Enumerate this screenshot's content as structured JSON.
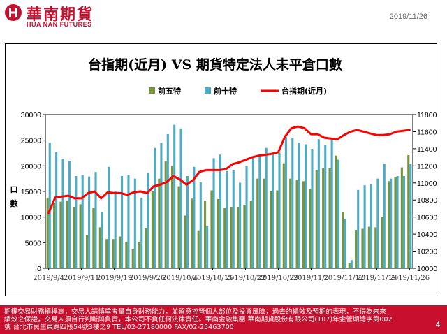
{
  "header": {
    "company_cn": "華南期貨",
    "company_en": "HUA NAN FUTURES",
    "date": "2019/11/26"
  },
  "chart_data": {
    "type": "bar+line",
    "title": "台指期(近月)  VS 期貨特定法人未平倉口數",
    "ylabel": "口數",
    "y_left": {
      "range": [
        0,
        30000
      ],
      "ticks": [
        0,
        5000,
        10000,
        15000,
        20000,
        25000,
        30000
      ]
    },
    "y_right": {
      "range": [
        10000,
        11800
      ],
      "ticks": [
        10000,
        10200,
        10400,
        10600,
        10800,
        11000,
        11200,
        11400,
        11600,
        11800
      ]
    },
    "x_tick_labels": [
      "2019/9/4",
      "2019/9/11",
      "2019/9/19",
      "2019/9/26",
      "2019/10/4",
      "2019/10/15",
      "2019/10/22",
      "2019/10/29",
      "2019/11/5",
      "2019/11/12",
      "2019/11/19",
      "2019/11/26"
    ],
    "x_tick_indices": [
      0,
      5,
      10,
      15,
      20,
      25,
      30,
      35,
      40,
      45,
      50,
      55
    ],
    "legend_position": "top-center",
    "grid": false,
    "series": [
      {
        "name": "前五特",
        "kind": "bar",
        "color": "#77933c",
        "values": [
          13800,
          12800,
          13000,
          13200,
          12000,
          12500,
          6500,
          11800,
          8000,
          5700,
          5700,
          6200,
          5200,
          3700,
          5200,
          7800,
          15000,
          17500,
          21000,
          20000,
          16000,
          10300,
          13600,
          7400,
          13200,
          15200,
          13500,
          11800,
          12000,
          12000,
          12400,
          13200,
          17500,
          17500,
          15000,
          15200,
          20500,
          17500,
          17200,
          17000,
          15500,
          19200,
          19500,
          19500,
          22000,
          10900,
          1000,
          7500,
          7700,
          8100,
          8000,
          10000,
          17000,
          17800,
          19700,
          22100
        ]
      },
      {
        "name": "前十特",
        "kind": "bar",
        "color": "#4bacc6",
        "values": [
          24500,
          22700,
          21400,
          21000,
          18000,
          18200,
          17900,
          18800,
          11000,
          19800,
          15000,
          18000,
          18200,
          17500,
          13800,
          18600,
          23500,
          24500,
          26200,
          28000,
          27300,
          18000,
          19800,
          16800,
          8300,
          21500,
          22200,
          19000,
          19200,
          16700,
          20000,
          21700,
          22200,
          23500,
          22600,
          22600,
          25700,
          25400,
          24500,
          24200,
          23300,
          25200,
          24000,
          25100,
          21200,
          9700,
          1600,
          15300,
          16200,
          16400,
          17500,
          20400,
          17500,
          18000,
          18000,
          20400
        ]
      },
      {
        "name": "台指期(近月)",
        "kind": "line",
        "color": "#ff0000",
        "values": [
          10650,
          10830,
          10840,
          10850,
          10820,
          10820,
          10880,
          10900,
          10820,
          10890,
          10880,
          10880,
          10860,
          10890,
          10900,
          10880,
          10960,
          10980,
          11010,
          11080,
          11040,
          10980,
          11030,
          11130,
          11150,
          11150,
          11150,
          11160,
          11220,
          11240,
          11270,
          11300,
          11320,
          11330,
          11340,
          11360,
          11540,
          11640,
          11660,
          11640,
          11570,
          11570,
          11530,
          11520,
          11510,
          11560,
          11600,
          11620,
          11600,
          11580,
          11560,
          11560,
          11570,
          11600,
          11610,
          11620
        ]
      }
    ]
  },
  "footer": {
    "line1": "期權交易財務槓桿高，交易人請慎重考量自身財務能力，並留意控管個人部位及投資風險；過去的績效及預期的表現，不得為未來",
    "line2": "績效之保證，交易人須自行判斷與負責，本公司不負任何法律責任。華南金融集團 華南期貨股份有限公司(107)年金管期總字第002",
    "line3": "號 台北市民生東路四段54號3樓之9 TEL/02-27180000 FAX/02-25463700",
    "page": "4"
  }
}
